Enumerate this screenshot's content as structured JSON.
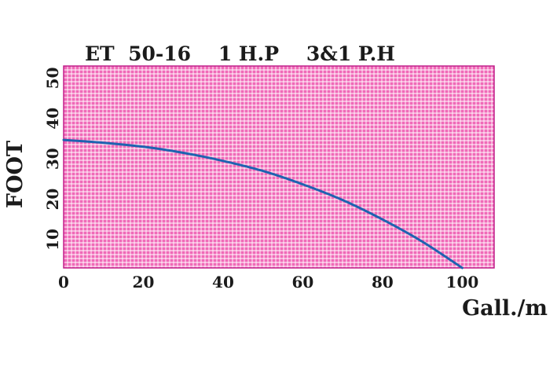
{
  "chart_data": {
    "type": "line",
    "title": "ET  50-16    1 H.P    3&1 P.H",
    "xlabel": "Gall./m",
    "ylabel": "FOOT",
    "xlim": [
      0,
      108
    ],
    "ylim": [
      3,
      53
    ],
    "x_ticks": [
      0,
      20,
      40,
      60,
      80,
      100
    ],
    "y_ticks": [
      10,
      20,
      30,
      40,
      50
    ],
    "grid": true,
    "series": [
      {
        "x": [
          0,
          10,
          20,
          30,
          40,
          50,
          60,
          70,
          80,
          90,
          100
        ],
        "y": [
          34.7,
          34.0,
          33.0,
          31.5,
          29.5,
          27.0,
          23.7,
          19.8,
          15.0,
          9.5,
          3.0
        ]
      }
    ]
  },
  "colors": {
    "plot_background": "#f06ab8",
    "grid_line": "#ffffff",
    "plot_border": "#c0208a",
    "curve": "#1e63b0",
    "text": "#1b1b1b"
  }
}
